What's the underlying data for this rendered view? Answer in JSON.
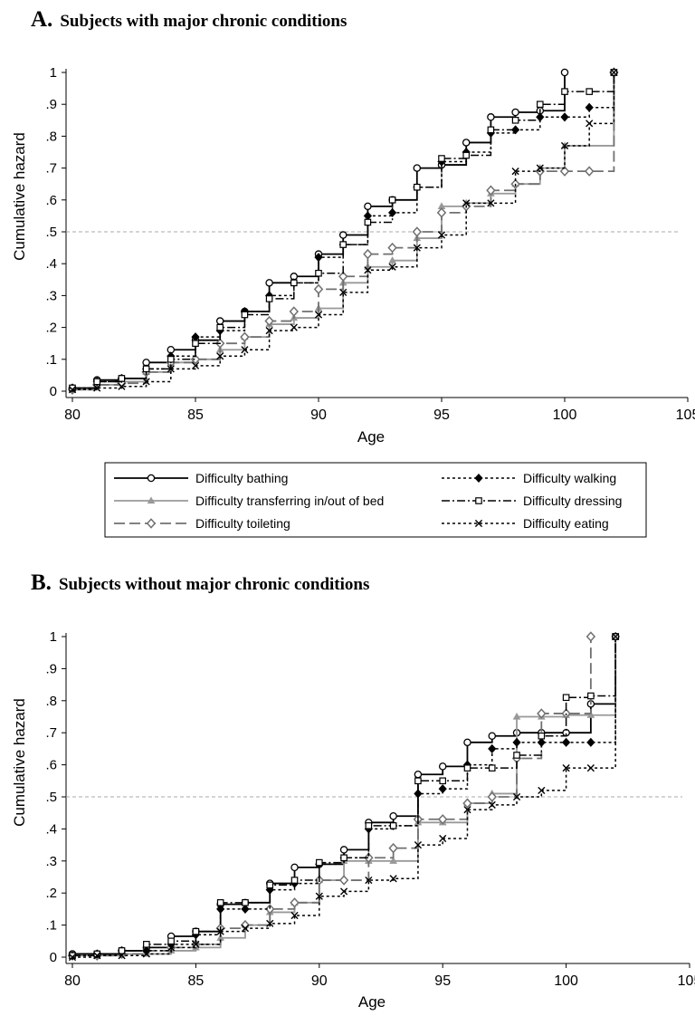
{
  "panels": [
    {
      "letter": "A.",
      "title": "Subjects with major chronic conditions",
      "chart_data": {
        "type": "line",
        "step": true,
        "xlabel": "Age",
        "ylabel": "Cumulative hazard",
        "xlim": [
          80,
          105
        ],
        "ylim": [
          0,
          1
        ],
        "xticks": [
          "80",
          "85",
          "90",
          "95",
          "100",
          "105"
        ],
        "yticks": [
          "0",
          ".1",
          ".2",
          ".3",
          ".4",
          ".5",
          ".6",
          ".7",
          ".8",
          ".9",
          "1"
        ],
        "reference_line": 0.5,
        "series": [
          {
            "name": "Difficulty bathing",
            "color": "#000000",
            "marker": "circle",
            "x": [
              80,
              81,
              82,
              83,
              84,
              85,
              86,
              87,
              88,
              89,
              90,
              91,
              92,
              93,
              94,
              95,
              96,
              97,
              98,
              99,
              100
            ],
            "y": [
              0.01,
              0.035,
              0.04,
              0.09,
              0.13,
              0.16,
              0.22,
              0.25,
              0.34,
              0.36,
              0.43,
              0.49,
              0.58,
              0.6,
              0.7,
              0.71,
              0.78,
              0.86,
              0.875,
              0.88,
              1.0
            ]
          },
          {
            "name": "Difficulty transferring in/out of bed",
            "color": "#999999",
            "marker": "triangle",
            "x": [
              80,
              81,
              82,
              83,
              84,
              85,
              86,
              87,
              88,
              89,
              90,
              91,
              92,
              93,
              94,
              95,
              96,
              97,
              98,
              99,
              100,
              102
            ],
            "y": [
              0.005,
              0.02,
              0.03,
              0.06,
              0.09,
              0.1,
              0.13,
              0.17,
              0.21,
              0.23,
              0.26,
              0.34,
              0.39,
              0.41,
              0.48,
              0.58,
              0.59,
              0.62,
              0.65,
              0.7,
              0.77,
              1.0
            ]
          },
          {
            "name": "Difficulty toileting",
            "color": "#707070",
            "marker": "diamond-open",
            "x": [
              80,
              81,
              82,
              83,
              84,
              85,
              86,
              87,
              88,
              89,
              90,
              91,
              92,
              93,
              94,
              95,
              96,
              97,
              98,
              99,
              100,
              101,
              102
            ],
            "y": [
              0.005,
              0.02,
              0.025,
              0.06,
              0.09,
              0.1,
              0.15,
              0.17,
              0.22,
              0.25,
              0.32,
              0.36,
              0.43,
              0.45,
              0.5,
              0.56,
              0.58,
              0.63,
              0.65,
              0.69,
              0.69,
              0.69,
              1.0
            ]
          },
          {
            "name": "Difficulty walking",
            "color": "#000000",
            "marker": "diamond",
            "x": [
              80,
              81,
              82,
              83,
              84,
              85,
              86,
              87,
              88,
              89,
              90,
              91,
              92,
              93,
              94,
              95,
              96,
              97,
              98,
              99,
              100,
              101,
              102
            ],
            "y": [
              0.01,
              0.03,
              0.04,
              0.07,
              0.11,
              0.17,
              0.19,
              0.25,
              0.3,
              0.34,
              0.42,
              0.46,
              0.55,
              0.56,
              0.64,
              0.72,
              0.75,
              0.81,
              0.82,
              0.86,
              0.86,
              0.89,
              1.0
            ]
          },
          {
            "name": "Difficulty dressing",
            "color": "#000000",
            "marker": "square",
            "x": [
              80,
              81,
              82,
              83,
              84,
              85,
              86,
              87,
              88,
              89,
              90,
              91,
              92,
              93,
              94,
              95,
              96,
              97,
              98,
              99,
              100,
              101,
              102
            ],
            "y": [
              0.01,
              0.03,
              0.04,
              0.07,
              0.1,
              0.15,
              0.2,
              0.24,
              0.29,
              0.34,
              0.37,
              0.46,
              0.53,
              0.6,
              0.64,
              0.73,
              0.74,
              0.82,
              0.85,
              0.9,
              0.94,
              0.94,
              1.0
            ]
          },
          {
            "name": "Difficulty eating",
            "color": "#000000",
            "marker": "x",
            "x": [
              80,
              81,
              82,
              83,
              84,
              85,
              86,
              87,
              88,
              89,
              90,
              91,
              92,
              93,
              94,
              95,
              96,
              97,
              98,
              99,
              100,
              101,
              102
            ],
            "y": [
              0.005,
              0.01,
              0.015,
              0.03,
              0.07,
              0.08,
              0.11,
              0.13,
              0.19,
              0.2,
              0.24,
              0.31,
              0.38,
              0.39,
              0.45,
              0.49,
              0.59,
              0.59,
              0.69,
              0.7,
              0.77,
              0.84,
              1.0
            ]
          }
        ]
      }
    },
    {
      "letter": "B.",
      "title": "Subjects without major chronic conditions",
      "chart_data": {
        "type": "line",
        "step": true,
        "xlabel": "Age",
        "ylabel": "Cumulative hazard",
        "xlim": [
          80,
          105
        ],
        "ylim": [
          0,
          1
        ],
        "xticks": [
          "80",
          "85",
          "90",
          "95",
          "100",
          "105"
        ],
        "yticks": [
          "0",
          ".1",
          ".2",
          ".3",
          ".4",
          ".5",
          ".6",
          ".7",
          ".8",
          ".9",
          "1"
        ],
        "reference_line": 0.5,
        "series": [
          {
            "name": "Difficulty bathing",
            "color": "#000000",
            "marker": "circle",
            "x": [
              80,
              81,
              82,
              83,
              84,
              85,
              86,
              87,
              88,
              89,
              90,
              91,
              92,
              93,
              94,
              95,
              96,
              97,
              98,
              99,
              100,
              101,
              102
            ],
            "y": [
              0.01,
              0.01,
              0.02,
              0.03,
              0.065,
              0.08,
              0.165,
              0.17,
              0.23,
              0.28,
              0.29,
              0.335,
              0.42,
              0.44,
              0.57,
              0.595,
              0.67,
              0.69,
              0.7,
              0.7,
              0.7,
              0.79,
              1.0
            ]
          },
          {
            "name": "Difficulty transferring in/out of bed",
            "color": "#999999",
            "marker": "triangle",
            "x": [
              80,
              81,
              82,
              83,
              84,
              85,
              86,
              87,
              88,
              89,
              90,
              91,
              92,
              93,
              94,
              95,
              96,
              97,
              98,
              99,
              100,
              101,
              102
            ],
            "y": [
              0.005,
              0.005,
              0.01,
              0.01,
              0.02,
              0.03,
              0.06,
              0.1,
              0.14,
              0.17,
              0.24,
              0.3,
              0.3,
              0.3,
              0.42,
              0.42,
              0.48,
              0.51,
              0.75,
              0.75,
              0.755,
              0.755,
              1.0
            ]
          },
          {
            "name": "Difficulty toileting",
            "color": "#707070",
            "marker": "diamond-open",
            "x": [
              80,
              81,
              82,
              83,
              84,
              85,
              86,
              87,
              88,
              89,
              90,
              91,
              92,
              93,
              94,
              95,
              96,
              97,
              98,
              99,
              100,
              101
            ],
            "y": [
              0.005,
              0.005,
              0.01,
              0.02,
              0.03,
              0.04,
              0.09,
              0.1,
              0.15,
              0.17,
              0.24,
              0.24,
              0.31,
              0.34,
              0.43,
              0.43,
              0.48,
              0.5,
              0.62,
              0.76,
              0.76,
              1.0
            ]
          },
          {
            "name": "Difficulty walking",
            "color": "#000000",
            "marker": "diamond",
            "x": [
              80,
              81,
              82,
              83,
              84,
              85,
              86,
              87,
              88,
              89,
              90,
              91,
              92,
              93,
              94,
              95,
              96,
              97,
              98,
              99,
              100,
              101,
              102
            ],
            "y": [
              0.005,
              0.01,
              0.02,
              0.02,
              0.04,
              0.07,
              0.15,
              0.15,
              0.21,
              0.23,
              0.29,
              0.31,
              0.4,
              0.41,
              0.51,
              0.525,
              0.6,
              0.65,
              0.67,
              0.67,
              0.67,
              0.67,
              1.0
            ]
          },
          {
            "name": "Difficulty dressing",
            "color": "#000000",
            "marker": "square",
            "x": [
              80,
              81,
              82,
              83,
              84,
              85,
              86,
              87,
              88,
              89,
              90,
              91,
              92,
              93,
              94,
              95,
              96,
              97,
              98,
              99,
              100,
              101,
              102
            ],
            "y": [
              0.005,
              0.01,
              0.02,
              0.04,
              0.05,
              0.08,
              0.17,
              0.17,
              0.225,
              0.24,
              0.295,
              0.31,
              0.41,
              0.41,
              0.55,
              0.55,
              0.59,
              0.59,
              0.63,
              0.69,
              0.81,
              0.815,
              1.0
            ]
          },
          {
            "name": "Difficulty eating",
            "color": "#000000",
            "marker": "x",
            "x": [
              80,
              81,
              82,
              83,
              84,
              85,
              86,
              87,
              88,
              89,
              90,
              91,
              92,
              93,
              94,
              95,
              96,
              97,
              98,
              99,
              100,
              101,
              102
            ],
            "y": [
              0.0,
              0.005,
              0.005,
              0.01,
              0.03,
              0.04,
              0.08,
              0.09,
              0.105,
              0.13,
              0.19,
              0.205,
              0.24,
              0.245,
              0.35,
              0.37,
              0.46,
              0.475,
              0.5,
              0.52,
              0.59,
              0.59,
              1.0
            ]
          }
        ]
      }
    }
  ]
}
